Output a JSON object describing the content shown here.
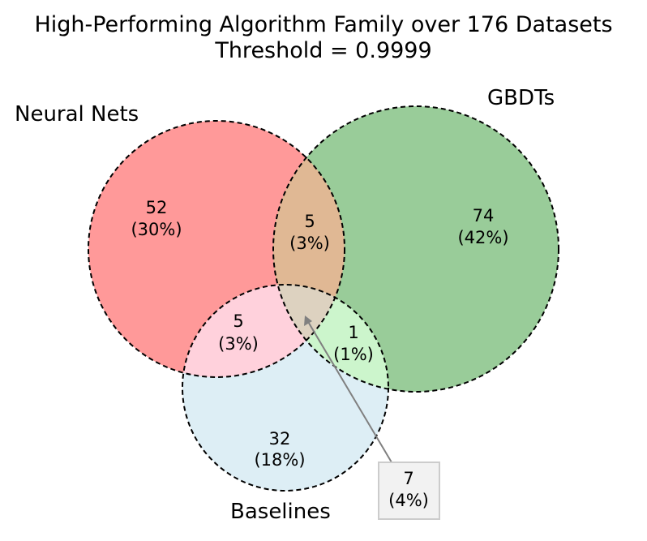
{
  "chart_data": {
    "type": "venn",
    "title": "High-Performing Algorithm Family over 176 Datasets",
    "subtitle": "Threshold = 0.9999",
    "sets": [
      {
        "name": "Neural Nets",
        "color": "#ff9999"
      },
      {
        "name": "GBDTs",
        "color": "#99cc99"
      },
      {
        "name": "Baselines",
        "color": "#ddeef5"
      }
    ],
    "regions": [
      {
        "id": "nn_only",
        "sets": [
          "Neural Nets"
        ],
        "count": "52",
        "percent": "(30%)",
        "color": "#ff9999"
      },
      {
        "id": "gbdt_only",
        "sets": [
          "GBDTs"
        ],
        "count": "74",
        "percent": "(42%)",
        "color": "#99cc99"
      },
      {
        "id": "base_only",
        "sets": [
          "Baselines"
        ],
        "count": "32",
        "percent": "(18%)",
        "color": "#ddeef5"
      },
      {
        "id": "nn_gbdt",
        "sets": [
          "Neural Nets",
          "GBDTs"
        ],
        "count": "5",
        "percent": "(3%)",
        "color": "#e0b894"
      },
      {
        "id": "nn_base",
        "sets": [
          "Neural Nets",
          "Baselines"
        ],
        "count": "5",
        "percent": "(3%)",
        "color": "#ffd1dc"
      },
      {
        "id": "gbdt_base",
        "sets": [
          "GBDTs",
          "Baselines"
        ],
        "count": "1",
        "percent": "(1%)",
        "color": "#ccf5cc"
      },
      {
        "id": "all_three",
        "sets": [
          "Neural Nets",
          "GBDTs",
          "Baselines"
        ],
        "count": "7",
        "percent": "(4%)",
        "color": "#ddd2c0"
      }
    ]
  }
}
